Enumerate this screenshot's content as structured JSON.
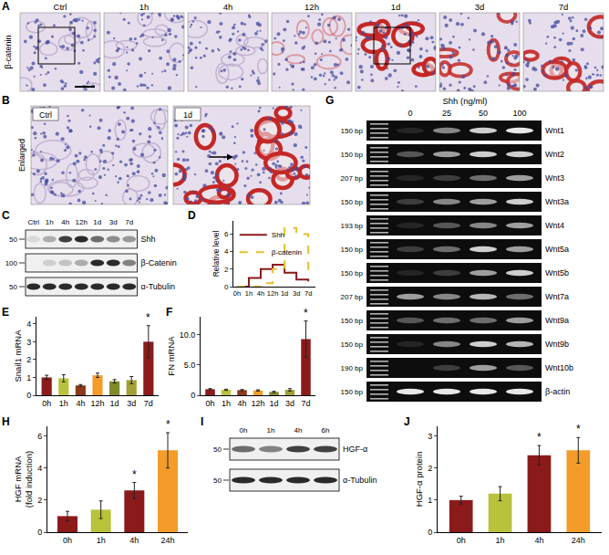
{
  "panels": {
    "A": {
      "label": "A",
      "row_label": "β-catenin",
      "columns": [
        "Ctrl",
        "1h",
        "4h",
        "12h",
        "1d",
        "3d",
        "7d"
      ]
    },
    "B": {
      "label": "B",
      "row_label": "Enlarged",
      "images": [
        "Ctrl",
        "1d"
      ]
    },
    "C": {
      "label": "C",
      "lanes": [
        "Ctrl",
        "1h",
        "4h",
        "12h",
        "1d",
        "3d",
        "7d"
      ],
      "rows": [
        {
          "name": "Shh",
          "marker": "50",
          "band_intensity": [
            0.1,
            0.3,
            0.8,
            0.9,
            0.6,
            0.45,
            0.4
          ]
        },
        {
          "name": "β-Catenin",
          "marker": "100",
          "band_intensity": [
            0.0,
            0.15,
            0.2,
            0.3,
            0.9,
            0.9,
            0.5
          ]
        },
        {
          "name": "α-Tubulin",
          "marker": "50",
          "band_intensity": [
            0.9,
            0.9,
            0.9,
            0.9,
            0.9,
            0.9,
            0.9
          ]
        }
      ]
    },
    "G": {
      "label": "G",
      "title": "Shh (ng/ml)",
      "lanes": [
        "0",
        "25",
        "50",
        "100"
      ],
      "rows": [
        {
          "size": "150 bp",
          "name": "Wnt1",
          "band_intensity": [
            0.1,
            0.5,
            0.8,
            0.9
          ]
        },
        {
          "size": "150 bp",
          "name": "Wnt2",
          "band_intensity": [
            0.3,
            0.6,
            0.8,
            0.8
          ]
        },
        {
          "size": "207 bp",
          "name": "Wnt3",
          "band_intensity": [
            0.1,
            0.2,
            0.4,
            0.6
          ]
        },
        {
          "size": "150 bp",
          "name": "Wnt3a",
          "band_intensity": [
            0.2,
            0.5,
            0.6,
            0.8
          ]
        },
        {
          "size": "193 bp",
          "name": "Wnt4",
          "band_intensity": [
            0.1,
            0.3,
            0.5,
            0.6
          ]
        },
        {
          "size": "150 bp",
          "name": "Wnt5a",
          "band_intensity": [
            0.2,
            0.4,
            0.8,
            0.6
          ]
        },
        {
          "size": "150 bp",
          "name": "Wnt5b",
          "band_intensity": [
            0.1,
            0.2,
            0.6,
            0.8
          ]
        },
        {
          "size": "207 bp",
          "name": "Wnt7a",
          "band_intensity": [
            0.6,
            0.5,
            0.7,
            0.4
          ]
        },
        {
          "size": "150 bp",
          "name": "Wnt9a",
          "band_intensity": [
            0.3,
            0.4,
            0.4,
            0.6
          ]
        },
        {
          "size": "150 bp",
          "name": "Wnt9b",
          "band_intensity": [
            0.1,
            0.5,
            0.8,
            0.7
          ]
        },
        {
          "size": "190 bp",
          "name": "Wnt10b",
          "band_intensity": [
            0.0,
            0.2,
            0.6,
            0.3
          ]
        },
        {
          "size": "150 bp",
          "name": "β-actin",
          "band_intensity": [
            0.9,
            0.9,
            0.9,
            0.9
          ]
        }
      ]
    },
    "I": {
      "label": "I",
      "lanes": [
        "0h",
        "1h",
        "4h",
        "6h"
      ],
      "rows": [
        {
          "name": "HGF-α",
          "marker": "50",
          "band_intensity": [
            0.6,
            0.5,
            0.8,
            0.8
          ]
        },
        {
          "name": "α-Tubulin",
          "marker": "50",
          "band_intensity": [
            0.9,
            0.9,
            0.9,
            0.9
          ]
        }
      ]
    }
  },
  "chart_data": [
    {
      "label": "D",
      "type": "line",
      "categories": [
        "0h",
        "1h",
        "4h",
        "12h",
        "1d",
        "3d",
        "7d"
      ],
      "series": [
        {
          "name": "Shh",
          "color": "#8b1a1a",
          "line_style": "solid",
          "values": [
            0,
            1.0,
            2.0,
            2.5,
            1.6,
            0.8,
            0.6
          ]
        },
        {
          "name": "β-catenin",
          "color": "#e6c02e",
          "line_style": "dash",
          "values": [
            0,
            0,
            0.4,
            2.0,
            6.7,
            6.0,
            1.3
          ]
        }
      ],
      "ylim": [
        0,
        7.5
      ],
      "yticks": [
        0,
        2,
        4,
        6
      ],
      "y_label": "Relative level",
      "legend": "upper left",
      "grid": false
    },
    {
      "label": "E",
      "type": "bar",
      "categories": [
        "0h",
        "1h",
        "4h",
        "12h",
        "1d",
        "3d",
        "7d"
      ],
      "values": [
        1.0,
        0.95,
        0.55,
        1.12,
        0.78,
        0.85,
        3.0
      ],
      "errors": [
        0.12,
        0.2,
        0.05,
        0.12,
        0.1,
        0.2,
        0.9
      ],
      "colors": [
        "#8b1a1a",
        "#b8c23a",
        "#8b3a1a",
        "#f39c2a",
        "#7f8a2a",
        "#a3a035",
        "#8b1a1a"
      ],
      "ylim": [
        0,
        4.4
      ],
      "yticks": [
        0,
        1,
        2,
        3,
        4
      ],
      "y_label": "Snail1 mRNA",
      "annotations": [
        {
          "category": "7d",
          "text": "*"
        }
      ],
      "grid": false
    },
    {
      "label": "F",
      "type": "bar",
      "categories": [
        "0h",
        "1h",
        "4h",
        "12h",
        "1d",
        "3d",
        "7d"
      ],
      "values": [
        1.0,
        0.9,
        0.85,
        0.8,
        0.55,
        0.9,
        9.3
      ],
      "errors": [
        0.1,
        0.1,
        0.1,
        0.1,
        0.1,
        0.2,
        3.0
      ],
      "colors": [
        "#8b1a1a",
        "#b8c23a",
        "#8b3a1a",
        "#f39c2a",
        "#7f8a2a",
        "#a3a035",
        "#8b1a1a"
      ],
      "ylim": [
        0,
        13
      ],
      "yticks": [
        0,
        {
          "value": 5,
          "label": "5.0"
        },
        {
          "value": 10,
          "label": "10.0"
        }
      ],
      "y_label": "FN mRNA",
      "annotations": [
        {
          "category": "7d",
          "text": "*"
        }
      ],
      "grid": false
    },
    {
      "label": "H",
      "type": "bar",
      "categories": [
        "0h",
        "1h",
        "4h",
        "24h"
      ],
      "values": [
        1.0,
        1.4,
        2.6,
        5.1
      ],
      "errors": [
        0.3,
        0.55,
        0.5,
        1.1
      ],
      "colors": [
        "#8b1a1a",
        "#b8c23a",
        "#8b1a1a",
        "#f39c2a"
      ],
      "ylim": [
        0,
        6.6
      ],
      "yticks": [
        0,
        2,
        4,
        6
      ],
      "y_label": [
        "HGF mRNA",
        "(fold induction)"
      ],
      "annotations": [
        {
          "category": "4h",
          "text": "*"
        },
        {
          "category": "24h",
          "text": "*"
        }
      ],
      "grid": false
    },
    {
      "label": "J",
      "type": "bar",
      "categories": [
        "0h",
        "1h",
        "4h",
        "24h"
      ],
      "values": [
        1.0,
        1.2,
        2.4,
        2.55
      ],
      "errors": [
        0.12,
        0.22,
        0.3,
        0.4
      ],
      "colors": [
        "#8b1a1a",
        "#b8c23a",
        "#8b1a1a",
        "#f39c2a"
      ],
      "ylim": [
        0,
        3.3
      ],
      "yticks": [
        0,
        1,
        2,
        3
      ],
      "y_label": "HGF-α protein",
      "annotations": [
        {
          "category": "4h",
          "text": "*"
        },
        {
          "category": "24h",
          "text": "*"
        }
      ],
      "grid": false
    }
  ]
}
